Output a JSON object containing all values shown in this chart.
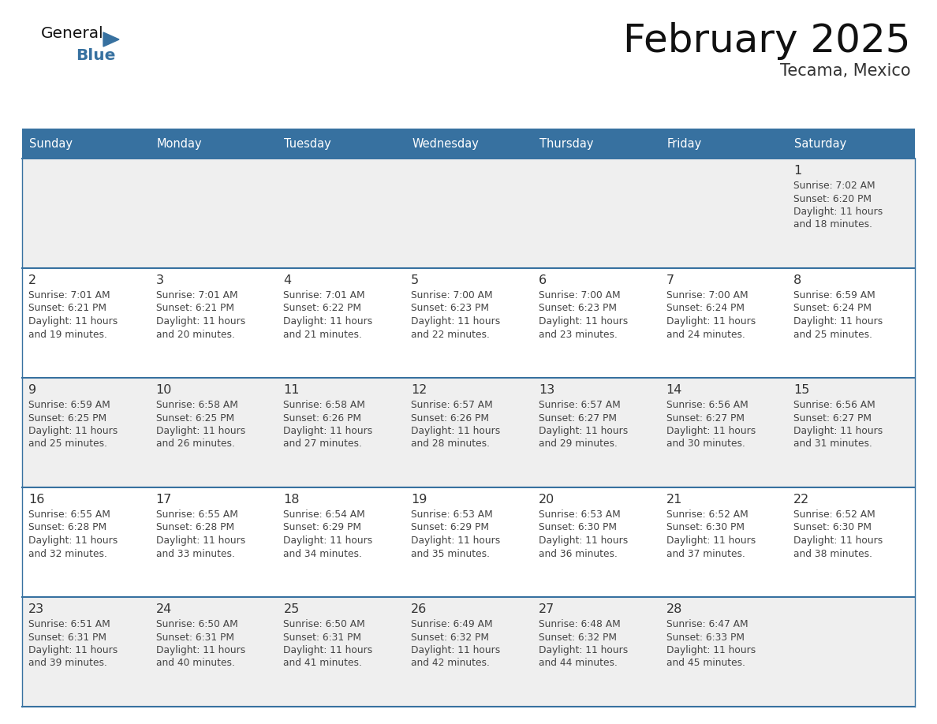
{
  "title": "February 2025",
  "subtitle": "Tecama, Mexico",
  "header_bg_color": "#3771a0",
  "header_text_color": "#ffffff",
  "day_names": [
    "Sunday",
    "Monday",
    "Tuesday",
    "Wednesday",
    "Thursday",
    "Friday",
    "Saturday"
  ],
  "row_bg_colors": [
    "#efefef",
    "#ffffff",
    "#efefef",
    "#ffffff",
    "#efefef"
  ],
  "cell_border_color": "#3771a0",
  "day_num_color": "#333333",
  "info_text_color": "#444444",
  "logo_general_color": "#111111",
  "logo_blue_color": "#3771a0",
  "calendar": [
    [
      null,
      null,
      null,
      null,
      null,
      null,
      {
        "day": 1,
        "sunrise": "7:02 AM",
        "sunset": "6:20 PM",
        "daylight": "11 hours and 18 minutes."
      }
    ],
    [
      {
        "day": 2,
        "sunrise": "7:01 AM",
        "sunset": "6:21 PM",
        "daylight": "11 hours and 19 minutes."
      },
      {
        "day": 3,
        "sunrise": "7:01 AM",
        "sunset": "6:21 PM",
        "daylight": "11 hours and 20 minutes."
      },
      {
        "day": 4,
        "sunrise": "7:01 AM",
        "sunset": "6:22 PM",
        "daylight": "11 hours and 21 minutes."
      },
      {
        "day": 5,
        "sunrise": "7:00 AM",
        "sunset": "6:23 PM",
        "daylight": "11 hours and 22 minutes."
      },
      {
        "day": 6,
        "sunrise": "7:00 AM",
        "sunset": "6:23 PM",
        "daylight": "11 hours and 23 minutes."
      },
      {
        "day": 7,
        "sunrise": "7:00 AM",
        "sunset": "6:24 PM",
        "daylight": "11 hours and 24 minutes."
      },
      {
        "day": 8,
        "sunrise": "6:59 AM",
        "sunset": "6:24 PM",
        "daylight": "11 hours and 25 minutes."
      }
    ],
    [
      {
        "day": 9,
        "sunrise": "6:59 AM",
        "sunset": "6:25 PM",
        "daylight": "11 hours and 25 minutes."
      },
      {
        "day": 10,
        "sunrise": "6:58 AM",
        "sunset": "6:25 PM",
        "daylight": "11 hours and 26 minutes."
      },
      {
        "day": 11,
        "sunrise": "6:58 AM",
        "sunset": "6:26 PM",
        "daylight": "11 hours and 27 minutes."
      },
      {
        "day": 12,
        "sunrise": "6:57 AM",
        "sunset": "6:26 PM",
        "daylight": "11 hours and 28 minutes."
      },
      {
        "day": 13,
        "sunrise": "6:57 AM",
        "sunset": "6:27 PM",
        "daylight": "11 hours and 29 minutes."
      },
      {
        "day": 14,
        "sunrise": "6:56 AM",
        "sunset": "6:27 PM",
        "daylight": "11 hours and 30 minutes."
      },
      {
        "day": 15,
        "sunrise": "6:56 AM",
        "sunset": "6:27 PM",
        "daylight": "11 hours and 31 minutes."
      }
    ],
    [
      {
        "day": 16,
        "sunrise": "6:55 AM",
        "sunset": "6:28 PM",
        "daylight": "11 hours and 32 minutes."
      },
      {
        "day": 17,
        "sunrise": "6:55 AM",
        "sunset": "6:28 PM",
        "daylight": "11 hours and 33 minutes."
      },
      {
        "day": 18,
        "sunrise": "6:54 AM",
        "sunset": "6:29 PM",
        "daylight": "11 hours and 34 minutes."
      },
      {
        "day": 19,
        "sunrise": "6:53 AM",
        "sunset": "6:29 PM",
        "daylight": "11 hours and 35 minutes."
      },
      {
        "day": 20,
        "sunrise": "6:53 AM",
        "sunset": "6:30 PM",
        "daylight": "11 hours and 36 minutes."
      },
      {
        "day": 21,
        "sunrise": "6:52 AM",
        "sunset": "6:30 PM",
        "daylight": "11 hours and 37 minutes."
      },
      {
        "day": 22,
        "sunrise": "6:52 AM",
        "sunset": "6:30 PM",
        "daylight": "11 hours and 38 minutes."
      }
    ],
    [
      {
        "day": 23,
        "sunrise": "6:51 AM",
        "sunset": "6:31 PM",
        "daylight": "11 hours and 39 minutes."
      },
      {
        "day": 24,
        "sunrise": "6:50 AM",
        "sunset": "6:31 PM",
        "daylight": "11 hours and 40 minutes."
      },
      {
        "day": 25,
        "sunrise": "6:50 AM",
        "sunset": "6:31 PM",
        "daylight": "11 hours and 41 minutes."
      },
      {
        "day": 26,
        "sunrise": "6:49 AM",
        "sunset": "6:32 PM",
        "daylight": "11 hours and 42 minutes."
      },
      {
        "day": 27,
        "sunrise": "6:48 AM",
        "sunset": "6:32 PM",
        "daylight": "11 hours and 44 minutes."
      },
      {
        "day": 28,
        "sunrise": "6:47 AM",
        "sunset": "6:33 PM",
        "daylight": "11 hours and 45 minutes."
      },
      null
    ]
  ]
}
